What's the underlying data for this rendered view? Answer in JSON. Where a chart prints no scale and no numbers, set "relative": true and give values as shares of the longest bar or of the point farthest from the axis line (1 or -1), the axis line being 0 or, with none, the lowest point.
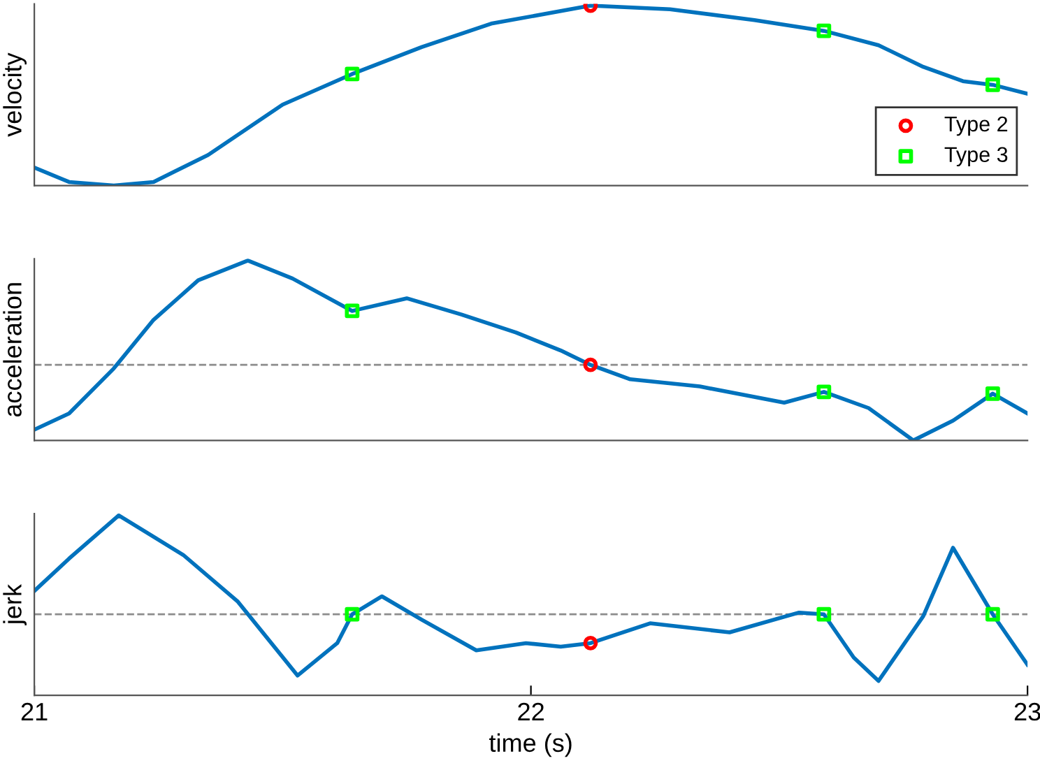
{
  "chart_data": [
    {
      "type": "line",
      "ylabel": "velocity",
      "relative": true,
      "xlim": [
        21,
        23
      ],
      "xticks": [
        21,
        22,
        23
      ],
      "tick_labels": false,
      "legend": "bottom right",
      "grid": false,
      "series": [
        {
          "color": "#0072bd",
          "x": [
            21.0,
            21.07,
            21.16,
            21.24,
            21.35,
            21.5,
            21.64,
            21.78,
            21.92,
            22.12,
            22.28,
            22.45,
            22.59,
            22.7,
            22.79,
            22.87,
            22.93,
            23.0
          ],
          "values": [
            0.1,
            0.02,
            0,
            0.02,
            0.17,
            0.45,
            0.62,
            0.77,
            0.9,
            1.0,
            0.98,
            0.92,
            0.86,
            0.78,
            0.66,
            0.58,
            0.56,
            0.51
          ],
          "line_style": "solid",
          "marker": "none"
        },
        {
          "type": "scatter",
          "name": "Type 2",
          "color": "#ff0000",
          "marker": "circle",
          "x": [
            22.12
          ],
          "values": [
            1.0
          ]
        },
        {
          "type": "scatter",
          "name": "Type 3",
          "color": "#00ff00",
          "marker": "square",
          "x": [
            21.64,
            22.59,
            22.93
          ],
          "values": [
            0.62,
            0.86,
            0.56
          ]
        }
      ]
    },
    {
      "type": "line",
      "ylabel": "acceleration",
      "relative": true,
      "xlim": [
        21,
        23
      ],
      "xticks": [
        21,
        22,
        23
      ],
      "tick_labels": false,
      "legend": false,
      "grid": false,
      "ref_lines": [
        {
          "axis": "y",
          "value": 0.42,
          "color": "#8c8c8c",
          "line_style": "dashed"
        }
      ],
      "series": [
        {
          "color": "#0072bd",
          "x": [
            21.0,
            21.07,
            21.16,
            21.24,
            21.33,
            21.43,
            21.52,
            21.64,
            21.75,
            21.86,
            21.97,
            22.06,
            22.12,
            22.2,
            22.34,
            22.51,
            22.59,
            22.68,
            22.77,
            22.85,
            22.93,
            23.0
          ],
          "values": [
            0.06,
            0.15,
            0.4,
            0.67,
            0.89,
            1.0,
            0.9,
            0.72,
            0.79,
            0.7,
            0.6,
            0.5,
            0.42,
            0.34,
            0.3,
            0.21,
            0.27,
            0.18,
            0,
            0.11,
            0.26,
            0.15
          ],
          "line_style": "solid",
          "marker": "none"
        },
        {
          "type": "scatter",
          "color": "#ff0000",
          "marker": "circle",
          "x": [
            22.12
          ],
          "values": [
            0.42
          ]
        },
        {
          "type": "scatter",
          "color": "#00ff00",
          "marker": "square",
          "x": [
            21.64,
            22.59,
            22.93
          ],
          "values": [
            0.72,
            0.27,
            0.26
          ]
        }
      ]
    },
    {
      "type": "line",
      "ylabel": "jerk",
      "xlabel": "time (s)",
      "relative": true,
      "xlim": [
        21,
        23
      ],
      "xticks": [
        21,
        22,
        23
      ],
      "tick_labels": "x",
      "legend": false,
      "grid": false,
      "ref_lines": [
        {
          "axis": "y",
          "value": 0.45,
          "color": "#8c8c8c",
          "line_style": "dashed"
        }
      ],
      "series": [
        {
          "color": "#0072bd",
          "x": [
            21.0,
            21.07,
            21.17,
            21.3,
            21.41,
            21.53,
            21.61,
            21.64,
            21.7,
            21.78,
            21.89,
            21.99,
            22.06,
            22.12,
            22.24,
            22.4,
            22.54,
            22.59,
            22.65,
            22.7,
            22.79,
            22.85,
            22.93,
            23.0
          ],
          "values": [
            0.58,
            0.76,
            1.0,
            0.78,
            0.52,
            0.11,
            0.29,
            0.45,
            0.55,
            0.42,
            0.25,
            0.29,
            0.27,
            0.29,
            0.4,
            0.35,
            0.46,
            0.45,
            0.21,
            0.08,
            0.44,
            0.82,
            0.45,
            0.17
          ],
          "line_style": "solid",
          "marker": "none"
        },
        {
          "type": "scatter",
          "color": "#ff0000",
          "marker": "circle",
          "x": [
            22.12
          ],
          "values": [
            0.29
          ]
        },
        {
          "type": "scatter",
          "color": "#00ff00",
          "marker": "square",
          "x": [
            21.64,
            22.59,
            22.93
          ],
          "values": [
            0.45,
            0.45,
            0.45
          ]
        }
      ]
    }
  ]
}
